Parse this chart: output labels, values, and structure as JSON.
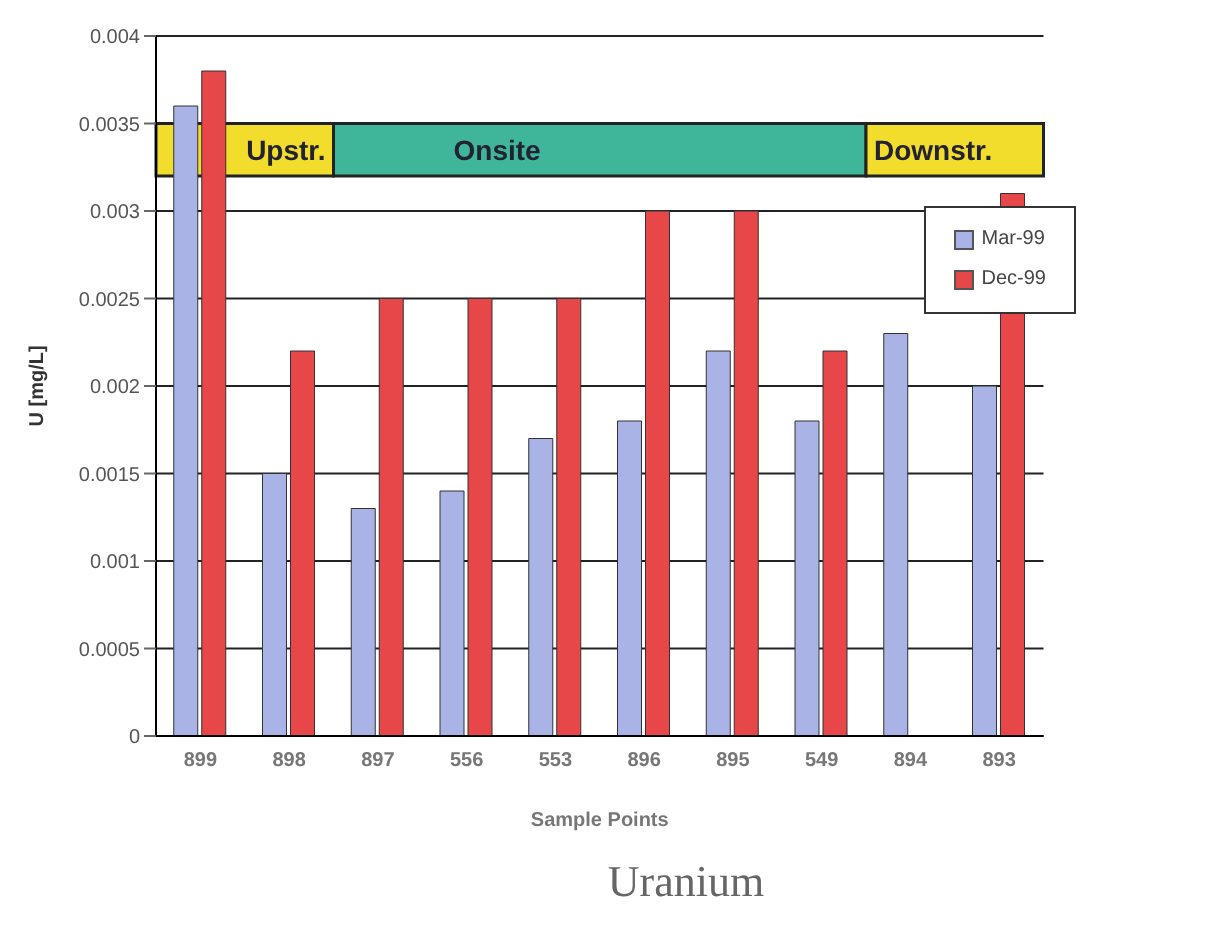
{
  "chart_data": {
    "type": "bar",
    "title": "Uranium",
    "xlabel": "Sample Points",
    "ylabel": "U [mg/L]",
    "categories": [
      "899",
      "898",
      "897",
      "556",
      "553",
      "896",
      "895",
      "549",
      "894",
      "893"
    ],
    "series": [
      {
        "name": "Mar-99",
        "color": "#a9b3e6",
        "values": [
          0.0036,
          0.0015,
          0.0013,
          0.0014,
          0.0017,
          0.0018,
          0.0022,
          0.0018,
          0.0023,
          0.002
        ]
      },
      {
        "name": "Dec-99",
        "color": "#e8474a",
        "values": [
          0.0038,
          0.0022,
          0.0025,
          0.0025,
          0.0025,
          0.003,
          0.003,
          0.0022,
          null,
          0.0031
        ]
      }
    ],
    "bands": [
      {
        "axis": "y",
        "from": 0.0032,
        "to": 0.0035,
        "label": "Upstr.",
        "color": "#f2dc2c"
      },
      {
        "axis": "y",
        "from": 0.0032,
        "to": 0.0035,
        "label": "Onsite",
        "color": "#3fb59a"
      },
      {
        "axis": "y",
        "from": 0.0032,
        "to": 0.0035,
        "label": "Downstr.",
        "color": "#f2dc2c"
      }
    ],
    "ylim": [
      0,
      0.004
    ],
    "yticks": [
      0,
      0.0005,
      0.001,
      0.0015,
      0.002,
      0.0025,
      0.003,
      0.0035,
      0.004
    ],
    "grid": "y",
    "legend": "top right"
  }
}
